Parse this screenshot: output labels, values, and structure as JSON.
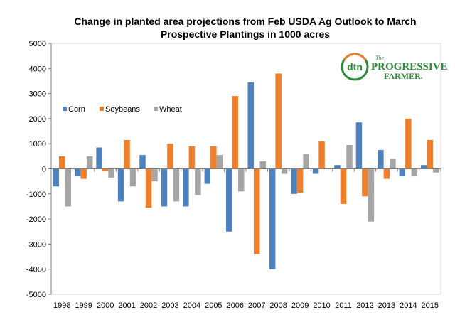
{
  "chart_data": {
    "type": "bar",
    "title_line1": "Change in planted area projections from Feb USDA Ag Outlook to March",
    "title_line2": "Prospective Plantings in 1000 acres",
    "categories": [
      "1998",
      "1999",
      "2000",
      "2001",
      "2002",
      "2003",
      "2004",
      "2005",
      "2006",
      "2007",
      "2008",
      "2009",
      "2010",
      "2011",
      "2012",
      "2013",
      "2014",
      "2015"
    ],
    "series": [
      {
        "name": "Corn",
        "color": "#4f81bd",
        "values": [
          -700,
          -300,
          850,
          -1300,
          550,
          -1500,
          -1500,
          -600,
          -2500,
          3450,
          -4000,
          -1000,
          -200,
          150,
          1850,
          750,
          -300,
          150
        ]
      },
      {
        "name": "Soybeans",
        "color": "#f07f2b",
        "values": [
          500,
          -400,
          -100,
          1150,
          -1550,
          1000,
          900,
          900,
          2900,
          -3400,
          3800,
          -950,
          1100,
          -1400,
          -1100,
          -400,
          2000,
          1150
        ]
      },
      {
        "name": "Wheat",
        "color": "#a5a5a5",
        "values": [
          -1500,
          500,
          -350,
          -700,
          -500,
          -1300,
          -1050,
          550,
          -900,
          300,
          -200,
          600,
          0,
          950,
          -2100,
          400,
          -300,
          -150
        ]
      }
    ],
    "yticks": [
      5000,
      4000,
      3000,
      2000,
      1000,
      0,
      -1000,
      -2000,
      -3000,
      -4000,
      -5000
    ],
    "ylim": [
      -5000,
      5000
    ],
    "legend_position": "upper-left"
  },
  "logo": {
    "badge": "dtn",
    "line1": "The",
    "line2": "PROGRESSIVE",
    "line3": "FARMER."
  }
}
